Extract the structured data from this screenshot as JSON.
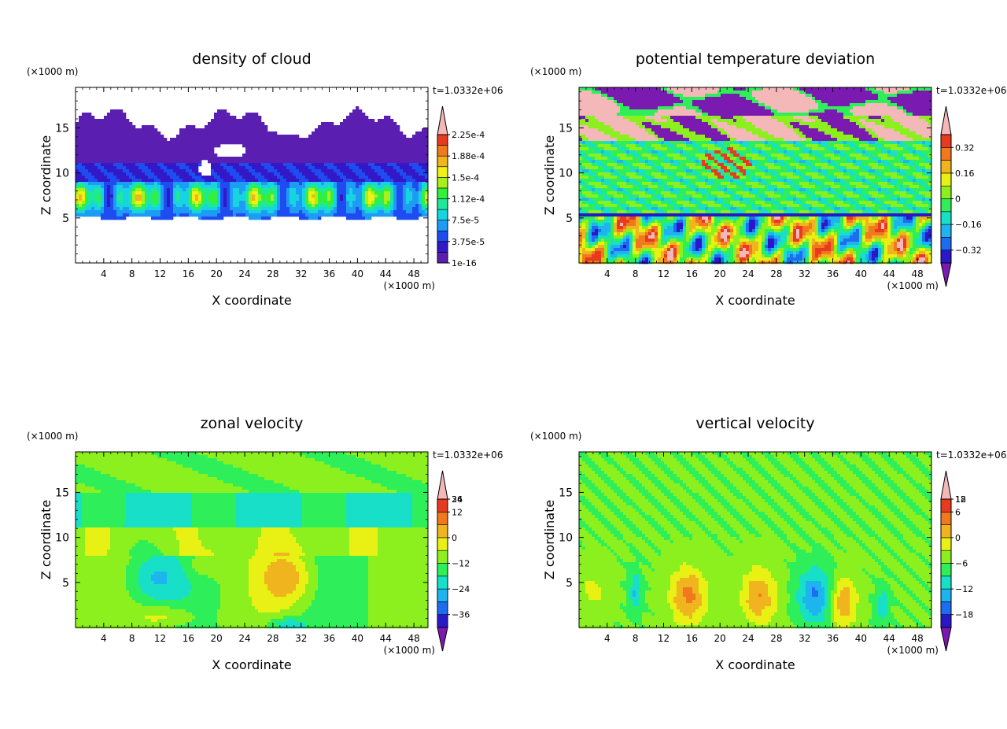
{
  "figure": {
    "time_label": "t=1.0332e+06",
    "unit_label": "(×1000 m)"
  },
  "chart_data": [
    {
      "type": "heatmap",
      "title": "density of cloud",
      "xlabel": "X coordinate",
      "ylabel": "Z coordinate",
      "x_unit": "(×1000 m)",
      "y_unit": "(×1000 m)",
      "time": "t=1.0332e+06",
      "xlim": [
        0,
        50
      ],
      "ylim": [
        0,
        19.5
      ],
      "x_ticks": [
        "4",
        "8",
        "12",
        "16",
        "20",
        "24",
        "28",
        "32",
        "36",
        "40",
        "44",
        "48"
      ],
      "y_ticks": [
        "5",
        "10",
        "15"
      ],
      "colorbar": {
        "labels": [
          "1e-16",
          "3.75e-5",
          "7.5e-5",
          "1.12e-4",
          "1.5e-4",
          "1.88e-4",
          "2.25e-4"
        ],
        "colors": [
          "#5a1fb0",
          "#3318c8",
          "#1f4cf0",
          "#1e9cf5",
          "#18d4e0",
          "#1ee89a",
          "#34ef3c",
          "#a8f01c",
          "#f0f014",
          "#f0b41e",
          "#f07a1e",
          "#e83a1e",
          "#f4b8b8"
        ],
        "extend": "max"
      },
      "field": "cloud",
      "grid": false
    },
    {
      "type": "heatmap",
      "title": "potential temperature deviation",
      "xlabel": "X coordinate",
      "ylabel": "Z coordinate",
      "x_unit": "(×1000 m)",
      "y_unit": "(×1000 m)",
      "time": "t=1.0332e+06",
      "xlim": [
        0,
        50
      ],
      "ylim": [
        0,
        19.5
      ],
      "x_ticks": [
        "4",
        "8",
        "12",
        "16",
        "20",
        "24",
        "28",
        "32",
        "36",
        "40",
        "44",
        "48"
      ],
      "y_ticks": [
        "5",
        "10",
        "15"
      ],
      "colorbar": {
        "labels": [
          "−0.32",
          "−0.16",
          "0",
          "0.16",
          "0.32"
        ],
        "colors": [
          "#7a1ab0",
          "#2a18c8",
          "#1e6cf0",
          "#1eb4f0",
          "#18e0c8",
          "#2eef5a",
          "#8cf01e",
          "#e8f014",
          "#f0b41e",
          "#f0781e",
          "#e83a1e",
          "#f4b8b8"
        ],
        "extend": "both"
      },
      "field": "theta",
      "grid": false
    },
    {
      "type": "heatmap",
      "title": "zonal velocity",
      "xlabel": "X coordinate",
      "ylabel": "Z coordinate",
      "x_unit": "(×1000 m)",
      "y_unit": "(×1000 m)",
      "time": "t=1.0332e+06",
      "xlim": [
        0,
        50
      ],
      "ylim": [
        0,
        19.5
      ],
      "x_ticks": [
        "4",
        "8",
        "12",
        "16",
        "20",
        "24",
        "28",
        "32",
        "36",
        "40",
        "44",
        "48"
      ],
      "y_ticks": [
        "5",
        "10",
        "15"
      ],
      "colorbar": {
        "labels": [
          "−36",
          "−24",
          "−12",
          "0",
          "12",
          "24",
          "36"
        ],
        "colors": [
          "#7a1ab0",
          "#2a18c8",
          "#1e6cf0",
          "#1eb4f0",
          "#18e0c8",
          "#2eef5a",
          "#8cf01e",
          "#e8f014",
          "#f0b41e",
          "#f0781e",
          "#e83a1e",
          "#f4b8b8"
        ],
        "extend": "both"
      },
      "field": "u",
      "grid": false
    },
    {
      "type": "heatmap",
      "title": "vertical velocity",
      "xlabel": "X coordinate",
      "ylabel": "Z coordinate",
      "x_unit": "(×1000 m)",
      "y_unit": "(×1000 m)",
      "time": "t=1.0332e+06",
      "xlim": [
        0,
        50
      ],
      "ylim": [
        0,
        19.5
      ],
      "x_ticks": [
        "4",
        "8",
        "12",
        "16",
        "20",
        "24",
        "28",
        "32",
        "36",
        "40",
        "44",
        "48"
      ],
      "y_ticks": [
        "5",
        "10",
        "15"
      ],
      "colorbar": {
        "labels": [
          "−18",
          "−12",
          "−6",
          "0",
          "6",
          "12",
          "18"
        ],
        "colors": [
          "#7a1ab0",
          "#2a18c8",
          "#1e6cf0",
          "#1eb4f0",
          "#18e0c8",
          "#2eef5a",
          "#8cf01e",
          "#e8f014",
          "#f0b41e",
          "#f0781e",
          "#e83a1e",
          "#f4b8b8"
        ],
        "extend": "both"
      },
      "field": "w",
      "grid": false
    }
  ]
}
